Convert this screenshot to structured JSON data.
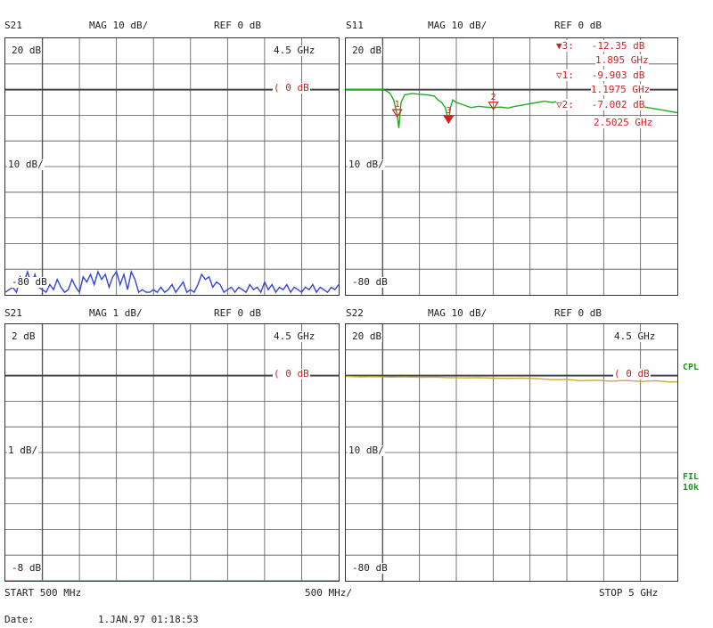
{
  "panels": [
    {
      "header": {
        "param": "S21",
        "format": "MAG 10 dB/",
        "ref": "REF 0 dB"
      },
      "top_label": "20 dB",
      "mid_label": "10 dB/",
      "bottom_label": "-80 dB",
      "freq_label": "4.5 GHz",
      "ref_marker": "( 0 dB",
      "trace_color": "#3344dd"
    },
    {
      "header": {
        "param": "S11",
        "format": "MAG 10 dB/",
        "ref": "REF 0 dB"
      },
      "top_label": "20 dB",
      "mid_label": "10 dB/",
      "bottom_label": "-80 dB",
      "trace_color": "#22aa22",
      "markers": [
        {
          "id": "3:",
          "value": "-12.35 dB",
          "freq": "1.895 GHz"
        },
        {
          "id": "1:",
          "value": "-9.903 dB",
          "freq": "1.1975 GHz"
        },
        {
          "id": "2:",
          "value": "-7.002 dB",
          "freq": "2.5025 GHz"
        }
      ]
    },
    {
      "header": {
        "param": "S21",
        "format": "MAG 1 dB/",
        "ref": "REF 0 dB"
      },
      "top_label": "2 dB",
      "mid_label": "1 dB/",
      "bottom_label": "-8 dB",
      "freq_label": "4.5 GHz",
      "ref_marker": "( 0 dB",
      "trace_color": "#33bbbb"
    },
    {
      "header": {
        "param": "S22",
        "format": "MAG 10 dB/",
        "ref": "REF 0 dB"
      },
      "top_label": "20 dB",
      "mid_label": "10 dB/",
      "bottom_label": "-80 dB",
      "freq_label": "4.5 GHz",
      "ref_marker": "( 0 dB",
      "trace_color": "#ccaa33"
    }
  ],
  "side_labels": {
    "cpl": "CPL",
    "fil": "FIL",
    "fil_value": "10k"
  },
  "footer": {
    "start": "START  500 MHz",
    "span": "500 MHz/",
    "stop": "STOP 5 GHz",
    "date_label": "Date:",
    "date_value": "1.JAN.97  01:18:53"
  },
  "chart_data": [
    {
      "type": "line",
      "name_display": "S21",
      "title": "S21",
      "ylabel": "MAG 10 dB/",
      "x_unit": "GHz",
      "xlim": [
        0.5,
        5.0
      ],
      "ylim": [
        -80,
        20
      ],
      "reference_db": 0,
      "grid": true,
      "series": [
        {
          "x": [
            0.5,
            0.55,
            0.6,
            0.65,
            0.7,
            0.75,
            0.8,
            0.85,
            0.9,
            0.95,
            1.0,
            1.05,
            1.1,
            1.15,
            1.2,
            1.25,
            1.3,
            1.35,
            1.4,
            1.45,
            1.5,
            1.55,
            1.6,
            1.65,
            1.7,
            1.75,
            1.8,
            1.85,
            1.9,
            1.95,
            2.0,
            2.05,
            2.1,
            2.15,
            2.2,
            2.25,
            2.3,
            2.35,
            2.4,
            2.45,
            2.5,
            2.55,
            2.6,
            2.65,
            2.7,
            2.75,
            2.8,
            2.85,
            2.9,
            2.95,
            3.0,
            3.05,
            3.1,
            3.15,
            3.2,
            3.25,
            3.3,
            3.35,
            3.4,
            3.45,
            3.5,
            3.55,
            3.6,
            3.65,
            3.7,
            3.75,
            3.8,
            3.85,
            3.9,
            3.95,
            4.0,
            4.05,
            4.1,
            4.15,
            4.2,
            4.25,
            4.3,
            4.35,
            4.4,
            4.45,
            4.5,
            4.55,
            4.6,
            4.65,
            4.7,
            4.75,
            4.8,
            4.85,
            4.9,
            4.95,
            5.0
          ],
          "y": [
            -79,
            -78,
            -77,
            -79,
            -73,
            -75,
            -71,
            -76,
            -72,
            -77,
            -78,
            -79,
            -76,
            -78,
            -74,
            -77,
            -79,
            -78,
            -74,
            -77,
            -79,
            -73,
            -75,
            -72,
            -76,
            -71,
            -74,
            -72,
            -77,
            -73,
            -71,
            -76,
            -72,
            -78,
            -71,
            -74,
            -79,
            -78,
            -79,
            -79,
            -78,
            -79,
            -77,
            -79,
            -78,
            -76,
            -79,
            -77,
            -75,
            -79,
            -78,
            -79,
            -76,
            -72,
            -74,
            -73,
            -77,
            -75,
            -76,
            -79,
            -78,
            -77,
            -79,
            -77,
            -78,
            -79,
            -76,
            -78,
            -77,
            -79,
            -75,
            -78,
            -76,
            -79,
            -77,
            -78,
            -76,
            -79,
            -77,
            -78,
            -79,
            -77,
            -78,
            -76,
            -79,
            -77,
            -78,
            -79,
            -77,
            -78,
            -76
          ]
        }
      ]
    },
    {
      "type": "line",
      "title": "S11",
      "ylabel": "MAG 10 dB/",
      "x_unit": "GHz",
      "xlim": [
        0.5,
        5.0
      ],
      "ylim": [
        -80,
        20
      ],
      "grid": true,
      "series": [
        {
          "x": [
            0.5,
            0.6,
            0.7,
            0.8,
            0.9,
            1.0,
            1.05,
            1.1,
            1.15,
            1.1975,
            1.22,
            1.25,
            1.3,
            1.4,
            1.5,
            1.6,
            1.7,
            1.75,
            1.8,
            1.85,
            1.895,
            1.92,
            1.95,
            2.0,
            2.1,
            2.2,
            2.3,
            2.4,
            2.5025,
            2.6,
            2.7,
            2.8,
            2.9,
            3.0,
            3.1,
            3.2,
            3.3,
            3.4,
            3.5,
            3.6,
            3.7,
            3.8,
            3.9,
            4.0,
            4.1,
            4.2,
            4.3,
            4.4,
            4.5,
            4.6,
            4.7,
            4.8,
            4.9,
            5.0
          ],
          "y": [
            0,
            0,
            0,
            0,
            0,
            0,
            -0.5,
            -1.5,
            -4,
            -9.9,
            -15,
            -5,
            -2,
            -1.5,
            -1.8,
            -2,
            -2.5,
            -4,
            -5,
            -7,
            -12.35,
            -7,
            -4,
            -5,
            -6,
            -7,
            -6.5,
            -6.8,
            -7,
            -6.8,
            -7.2,
            -6.5,
            -6,
            -5.5,
            -5,
            -4.5,
            -5,
            -4.5,
            -4.8,
            -5,
            -4.5,
            -4,
            -4.5,
            -4.2,
            -4.5,
            -5,
            -5.5,
            -6,
            -6.5,
            -7,
            -7.5,
            -8,
            -8.5,
            -9
          ]
        }
      ],
      "markers": [
        {
          "label": "1",
          "x": 1.1975,
          "y": -9.903
        },
        {
          "label": "3",
          "x": 1.895,
          "y": -12.35
        },
        {
          "label": "2",
          "x": 2.5025,
          "y": -7.002
        }
      ]
    },
    {
      "type": "line",
      "title": "S21",
      "ylabel": "MAG 1 dB/",
      "x_unit": "GHz",
      "xlim": [
        0.5,
        5.0
      ],
      "ylim": [
        -8,
        2
      ],
      "grid": true,
      "series": [
        {
          "x": [
            0.5,
            5.0
          ],
          "y": [
            -8,
            -8
          ]
        }
      ]
    },
    {
      "type": "line",
      "title": "S22",
      "ylabel": "MAG 10 dB/",
      "x_unit": "GHz",
      "xlim": [
        0.5,
        5.0
      ],
      "ylim": [
        -80,
        20
      ],
      "grid": true,
      "series": [
        {
          "x": [
            0.5,
            0.7,
            0.9,
            1.1,
            1.3,
            1.5,
            1.7,
            1.9,
            2.1,
            2.3,
            2.5,
            2.7,
            2.9,
            3.1,
            3.3,
            3.5,
            3.7,
            3.9,
            4.1,
            4.3,
            4.5,
            4.7,
            4.9,
            5.0
          ],
          "y": [
            -0.3,
            -0.5,
            -0.4,
            -0.6,
            -0.5,
            -0.7,
            -0.6,
            -0.8,
            -0.9,
            -0.8,
            -1.0,
            -1.1,
            -1.0,
            -1.2,
            -1.6,
            -1.5,
            -2.0,
            -1.8,
            -2.2,
            -1.9,
            -2.3,
            -2.0,
            -2.5,
            -2.4
          ]
        }
      ]
    }
  ]
}
